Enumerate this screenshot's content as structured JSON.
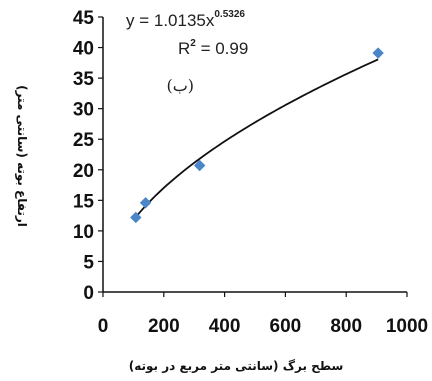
{
  "chart_data": {
    "type": "scatter",
    "xlabel": "سطح برگ (سانتی متر مربع در بوته)",
    "ylabel": "ارتفاع بوته (سانتی متر)",
    "xlim": [
      0,
      1000
    ],
    "ylim": [
      0,
      45
    ],
    "x_ticks": [
      "0",
      "200",
      "400",
      "600",
      "800",
      "1000"
    ],
    "y_ticks": [
      "0",
      "5",
      "10",
      "15",
      "20",
      "25",
      "30",
      "35",
      "40",
      "45"
    ],
    "grid": false,
    "series": [
      {
        "color": "#4a86c8",
        "marker": "diamond",
        "points": [
          {
            "x": 108,
            "y": 12.2
          },
          {
            "x": 140,
            "y": 14.6
          },
          {
            "x": 318,
            "y": 20.7
          },
          {
            "x": 905,
            "y": 39.1
          }
        ]
      }
    ],
    "trendline": {
      "kind": "power",
      "coef": 1.0135,
      "exponent": 0.5326,
      "color": "#111111",
      "x_range": [
        100,
        905
      ]
    },
    "annotations": {
      "equation_base": "y = 1.0135x",
      "equation_exponent": "0.5326",
      "r_squared_prefix": "R",
      "r_squared_sup": "2",
      "r_squared_value": " = 0.99",
      "panel_label": "(ب)"
    }
  }
}
